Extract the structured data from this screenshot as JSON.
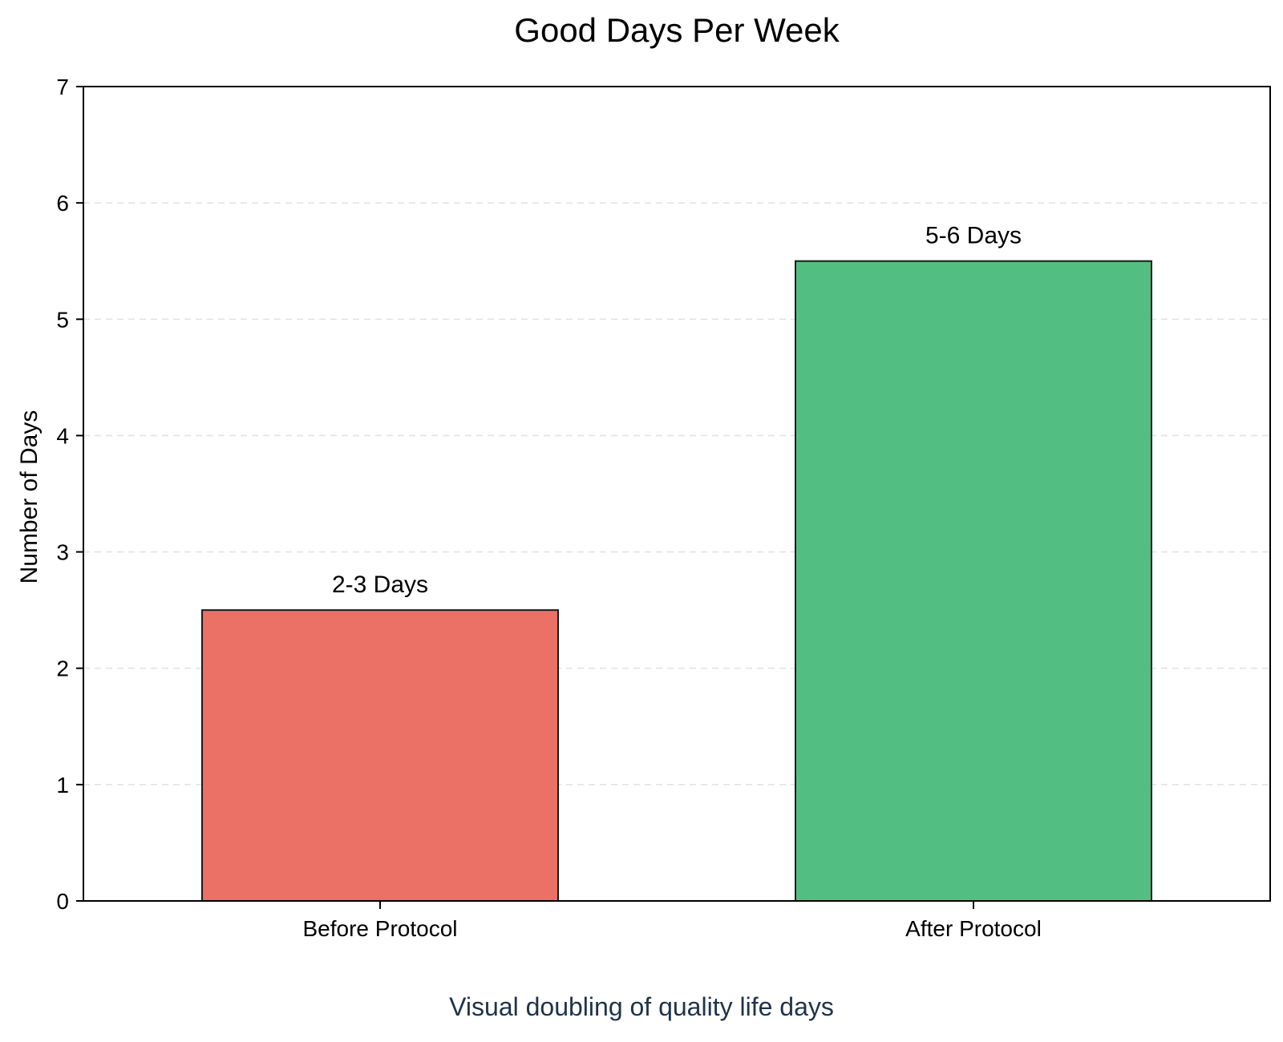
{
  "chart_data": {
    "type": "bar",
    "title": "Good Days Per Week",
    "categories": [
      "Before Protocol",
      "After Protocol"
    ],
    "values": [
      2.5,
      5.5
    ],
    "bar_labels": [
      "2-3 Days",
      "5-6 Days"
    ],
    "colors": [
      "#eb7065",
      "#53be81"
    ],
    "edge_color": "#1a1a1a",
    "xlabel": "",
    "ylabel": "Number of Days",
    "ylim": [
      0,
      7
    ],
    "yticks": [
      0,
      1,
      2,
      3,
      4,
      5,
      6,
      7
    ],
    "grid": "horizontal dashed",
    "grid_color": "#e3e3e3",
    "caption": "Visual doubling of quality life days",
    "caption_color": "#1f3349"
  }
}
